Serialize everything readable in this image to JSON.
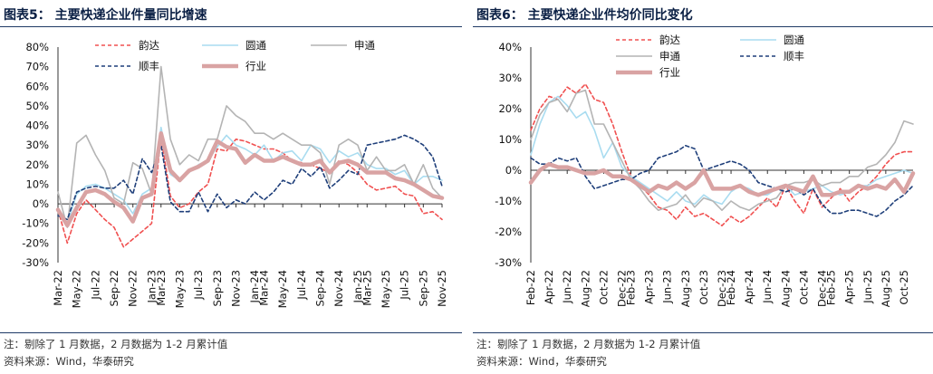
{
  "panels": [
    {
      "title": "图表5：  主要快递企业件量同比增速",
      "note": "注：剔除了 1 月数据，2 月数据为 1-2 月累计值",
      "source": "资料来源：Wind，华泰研究"
    },
    {
      "title": "图表6：  主要快递企业件均价同比变化",
      "note": "注：剔除了 1 月数据，2 月数据为 1-2 月累计值",
      "source": "资料来源：Wind，华泰研究"
    }
  ],
  "chart_data": [
    {
      "type": "line",
      "title": "主要快递企业件量同比增速",
      "x": [
        "Mar-22",
        "Apr-22",
        "May-22",
        "Jun-22",
        "Jul-22",
        "Aug-22",
        "Sep-22",
        "Oct-22",
        "Nov-22",
        "Dec-22",
        "Jan-23",
        "Mar-23",
        "Apr-23",
        "May-23",
        "Jun-23",
        "Jul-23",
        "Aug-23",
        "Sep-23",
        "Oct-23",
        "Nov-23",
        "Dec-23",
        "Jan-24",
        "Mar-24",
        "Apr-24",
        "May-24",
        "Jun-24",
        "Jul-24",
        "Aug-24",
        "Sep-24",
        "Oct-24",
        "Nov-24",
        "Dec-24",
        "Jan-25",
        "Mar-25",
        "Apr-25",
        "May-25",
        "Jun-25",
        "Jul-25",
        "Aug-25",
        "Sep-25",
        "Oct-25",
        "Nov-25"
      ],
      "x_tick_labels": [
        "Mar-22",
        "May-22",
        "Jul-22",
        "Sep-22",
        "Nov-22",
        "Jan-23",
        "Mar-23",
        "May-23",
        "Jul-23",
        "Sep-23",
        "Nov-23",
        "Jan-24",
        "Mar-24",
        "May-24",
        "Jul-24",
        "Sep-24",
        "Nov-24",
        "Jan-25",
        "Mar-25",
        "May-25",
        "Jul-25",
        "Sep-25",
        "Nov-25"
      ],
      "ylim": [
        -0.3,
        0.8
      ],
      "y_ticks": [
        "-30%",
        "-20%",
        "-10%",
        "0%",
        "10%",
        "20%",
        "30%",
        "40%",
        "50%",
        "60%",
        "70%",
        "80%"
      ],
      "series": [
        {
          "name": "韵达",
          "color": "#f05050",
          "dash": "dashed",
          "values": [
            -0.03,
            -0.2,
            -0.05,
            0.02,
            -0.03,
            -0.08,
            -0.12,
            -0.22,
            -0.18,
            -0.14,
            -0.1,
            0.34,
            0.04,
            -0.02,
            0.0,
            0.06,
            0.1,
            0.28,
            0.27,
            0.33,
            0.32,
            0.3,
            0.28,
            0.28,
            0.26,
            0.22,
            0.21,
            0.2,
            0.18,
            0.16,
            0.22,
            0.2,
            0.16,
            0.1,
            0.07,
            0.08,
            0.09,
            0.05,
            0.04,
            -0.05,
            -0.04,
            -0.08
          ]
        },
        {
          "name": "圆通",
          "color": "#a9dcf0",
          "dash": "solid",
          "values": [
            -0.04,
            -0.1,
            0.05,
            0.09,
            0.1,
            0.08,
            0.05,
            0.02,
            -0.05,
            0.05,
            0.08,
            0.39,
            0.15,
            0.12,
            0.16,
            0.2,
            0.22,
            0.29,
            0.35,
            0.3,
            0.28,
            0.25,
            0.3,
            0.22,
            0.26,
            0.27,
            0.22,
            0.3,
            0.28,
            0.21,
            0.27,
            0.24,
            0.26,
            0.2,
            0.18,
            0.18,
            0.15,
            0.17,
            0.1,
            0.14,
            0.14,
            0.12
          ]
        },
        {
          "name": "申通",
          "color": "#b4b4b4",
          "dash": "solid",
          "values": [
            0.06,
            -0.12,
            0.31,
            0.35,
            0.25,
            0.17,
            0.03,
            0.0,
            0.21,
            0.18,
            0.05,
            0.7,
            0.33,
            0.2,
            0.25,
            0.22,
            0.33,
            0.33,
            0.5,
            0.45,
            0.42,
            0.36,
            0.36,
            0.33,
            0.36,
            0.33,
            0.3,
            0.3,
            0.26,
            0.1,
            0.3,
            0.33,
            0.3,
            0.17,
            0.24,
            0.17,
            0.17,
            0.2,
            0.1,
            0.2,
            0.08,
            0.03
          ]
        },
        {
          "name": "顺丰",
          "color": "#1f3f7a",
          "dash": "dashed",
          "values": [
            -0.06,
            -0.08,
            0.06,
            0.08,
            0.09,
            0.08,
            0.08,
            0.12,
            0.05,
            0.23,
            0.16,
            0.3,
            0.01,
            -0.04,
            -0.04,
            0.06,
            -0.04,
            0.05,
            -0.02,
            0.02,
            0.0,
            0.06,
            0.02,
            0.06,
            0.12,
            0.1,
            0.18,
            0.14,
            0.19,
            0.08,
            0.12,
            0.17,
            0.15,
            0.3,
            0.31,
            0.32,
            0.33,
            0.35,
            0.33,
            0.3,
            0.24,
            0.09
          ]
        },
        {
          "name": "行业",
          "color": "#d9a3a3",
          "dash": "solid",
          "values": [
            -0.03,
            -0.11,
            -0.02,
            0.06,
            0.07,
            0.05,
            0.01,
            -0.02,
            -0.09,
            0.03,
            0.05,
            0.36,
            0.17,
            0.12,
            0.17,
            0.19,
            0.22,
            0.32,
            0.29,
            0.28,
            0.21,
            0.25,
            0.22,
            0.22,
            0.24,
            0.22,
            0.2,
            0.2,
            0.22,
            0.16,
            0.21,
            0.22,
            0.2,
            0.16,
            0.16,
            0.16,
            0.13,
            0.12,
            0.1,
            0.07,
            0.04,
            0.03
          ]
        }
      ],
      "legend": "top"
    },
    {
      "type": "line",
      "title": "主要快递企业件均价同比变化",
      "x": [
        "Feb-22",
        "Mar-22",
        "Apr-22",
        "May-22",
        "Jun-22",
        "Jul-22",
        "Aug-22",
        "Sep-22",
        "Oct-22",
        "Nov-22",
        "Dec-22",
        "Feb-23",
        "Mar-23",
        "Apr-23",
        "May-23",
        "Jun-23",
        "Jul-23",
        "Aug-23",
        "Sep-23",
        "Oct-23",
        "Nov-23",
        "Dec-23",
        "Feb-24",
        "Mar-24",
        "Apr-24",
        "May-24",
        "Jun-24",
        "Jul-24",
        "Aug-24",
        "Sep-24",
        "Oct-24",
        "Nov-24",
        "Dec-24",
        "Feb-25",
        "Mar-25",
        "Apr-25",
        "May-25",
        "Jun-25",
        "Jul-25",
        "Aug-25",
        "Sep-25",
        "Oct-25",
        "Nov-25"
      ],
      "x_tick_labels": [
        "Feb-22",
        "Apr-22",
        "Jun-22",
        "Aug-22",
        "Oct-22",
        "Dec-22",
        "Feb-23",
        "Apr-23",
        "Jun-23",
        "Aug-23",
        "Oct-23",
        "Dec-23",
        "Feb-24",
        "Apr-24",
        "Jun-24",
        "Aug-24",
        "Oct-24",
        "Dec-24",
        "Feb-25",
        "Apr-25",
        "Jun-25",
        "Aug-25",
        "Oct-25"
      ],
      "ylim": [
        -0.3,
        0.4
      ],
      "y_ticks": [
        "-30%",
        "-20%",
        "-10%",
        "0%",
        "10%",
        "20%",
        "30%",
        "40%"
      ],
      "series": [
        {
          "name": "韵达",
          "color": "#f05050",
          "dash": "dashed",
          "values": [
            0.13,
            0.2,
            0.24,
            0.23,
            0.27,
            0.25,
            0.28,
            0.23,
            0.22,
            0.15,
            0.06,
            -0.02,
            -0.05,
            -0.08,
            -0.12,
            -0.13,
            -0.16,
            -0.12,
            -0.15,
            -0.14,
            -0.16,
            -0.18,
            -0.15,
            -0.17,
            -0.15,
            -0.12,
            -0.09,
            -0.12,
            -0.05,
            -0.1,
            -0.14,
            -0.06,
            -0.12,
            -0.09,
            -0.06,
            -0.1,
            -0.07,
            -0.05,
            -0.02,
            0.02,
            0.05,
            0.06,
            0.06
          ]
        },
        {
          "name": "圆通",
          "color": "#a9dcf0",
          "dash": "solid",
          "values": [
            0.05,
            0.15,
            0.22,
            0.24,
            0.21,
            0.17,
            0.19,
            0.13,
            0.04,
            0.09,
            0.01,
            -0.02,
            -0.04,
            -0.06,
            -0.08,
            -0.1,
            -0.07,
            -0.1,
            -0.11,
            -0.08,
            -0.1,
            -0.11,
            -0.07,
            -0.05,
            -0.06,
            -0.08,
            -0.08,
            -0.06,
            -0.05,
            -0.08,
            -0.07,
            -0.06,
            -0.05,
            -0.07,
            -0.08,
            -0.07,
            -0.05,
            -0.05,
            -0.03,
            -0.02,
            -0.01,
            0.0,
            -0.01
          ]
        },
        {
          "name": "申通",
          "color": "#b4b4b4",
          "dash": "solid",
          "values": [
            0.1,
            0.18,
            0.22,
            0.23,
            0.19,
            0.25,
            0.26,
            0.15,
            0.15,
            0.09,
            0.03,
            -0.03,
            -0.06,
            -0.1,
            -0.13,
            -0.12,
            -0.11,
            -0.08,
            -0.12,
            -0.09,
            -0.1,
            -0.13,
            -0.1,
            -0.12,
            -0.13,
            -0.11,
            -0.1,
            -0.09,
            -0.05,
            -0.04,
            -0.04,
            -0.03,
            -0.05,
            -0.04,
            -0.04,
            -0.02,
            -0.02,
            0.01,
            0.02,
            0.05,
            0.09,
            0.16,
            0.15
          ]
        },
        {
          "name": "顺丰",
          "color": "#1f3f7a",
          "dash": "dashed",
          "values": [
            0.04,
            0.02,
            0.02,
            0.04,
            0.03,
            0.04,
            -0.02,
            -0.06,
            -0.05,
            -0.04,
            -0.03,
            -0.03,
            -0.01,
            0.0,
            0.04,
            0.05,
            0.06,
            0.08,
            0.07,
            0.0,
            0.01,
            0.02,
            0.03,
            0.02,
            0.0,
            -0.04,
            -0.05,
            -0.06,
            -0.07,
            -0.06,
            -0.08,
            -0.06,
            -0.11,
            -0.14,
            -0.14,
            -0.13,
            -0.13,
            -0.14,
            -0.15,
            -0.13,
            -0.1,
            -0.08,
            -0.05
          ]
        },
        {
          "name": "行业",
          "color": "#d9a3a3",
          "dash": "solid",
          "values": [
            -0.04,
            0.0,
            0.02,
            0.01,
            0.01,
            0.0,
            -0.01,
            -0.01,
            0.0,
            -0.02,
            -0.02,
            -0.03,
            -0.05,
            -0.07,
            -0.05,
            -0.06,
            -0.04,
            -0.06,
            -0.04,
            0.0,
            -0.06,
            -0.06,
            -0.06,
            -0.05,
            -0.07,
            -0.08,
            -0.07,
            -0.06,
            -0.05,
            -0.06,
            -0.07,
            -0.02,
            -0.08,
            -0.08,
            -0.07,
            -0.07,
            -0.05,
            -0.06,
            -0.05,
            -0.06,
            -0.03,
            -0.07,
            -0.01
          ]
        }
      ],
      "legend": "top"
    }
  ]
}
